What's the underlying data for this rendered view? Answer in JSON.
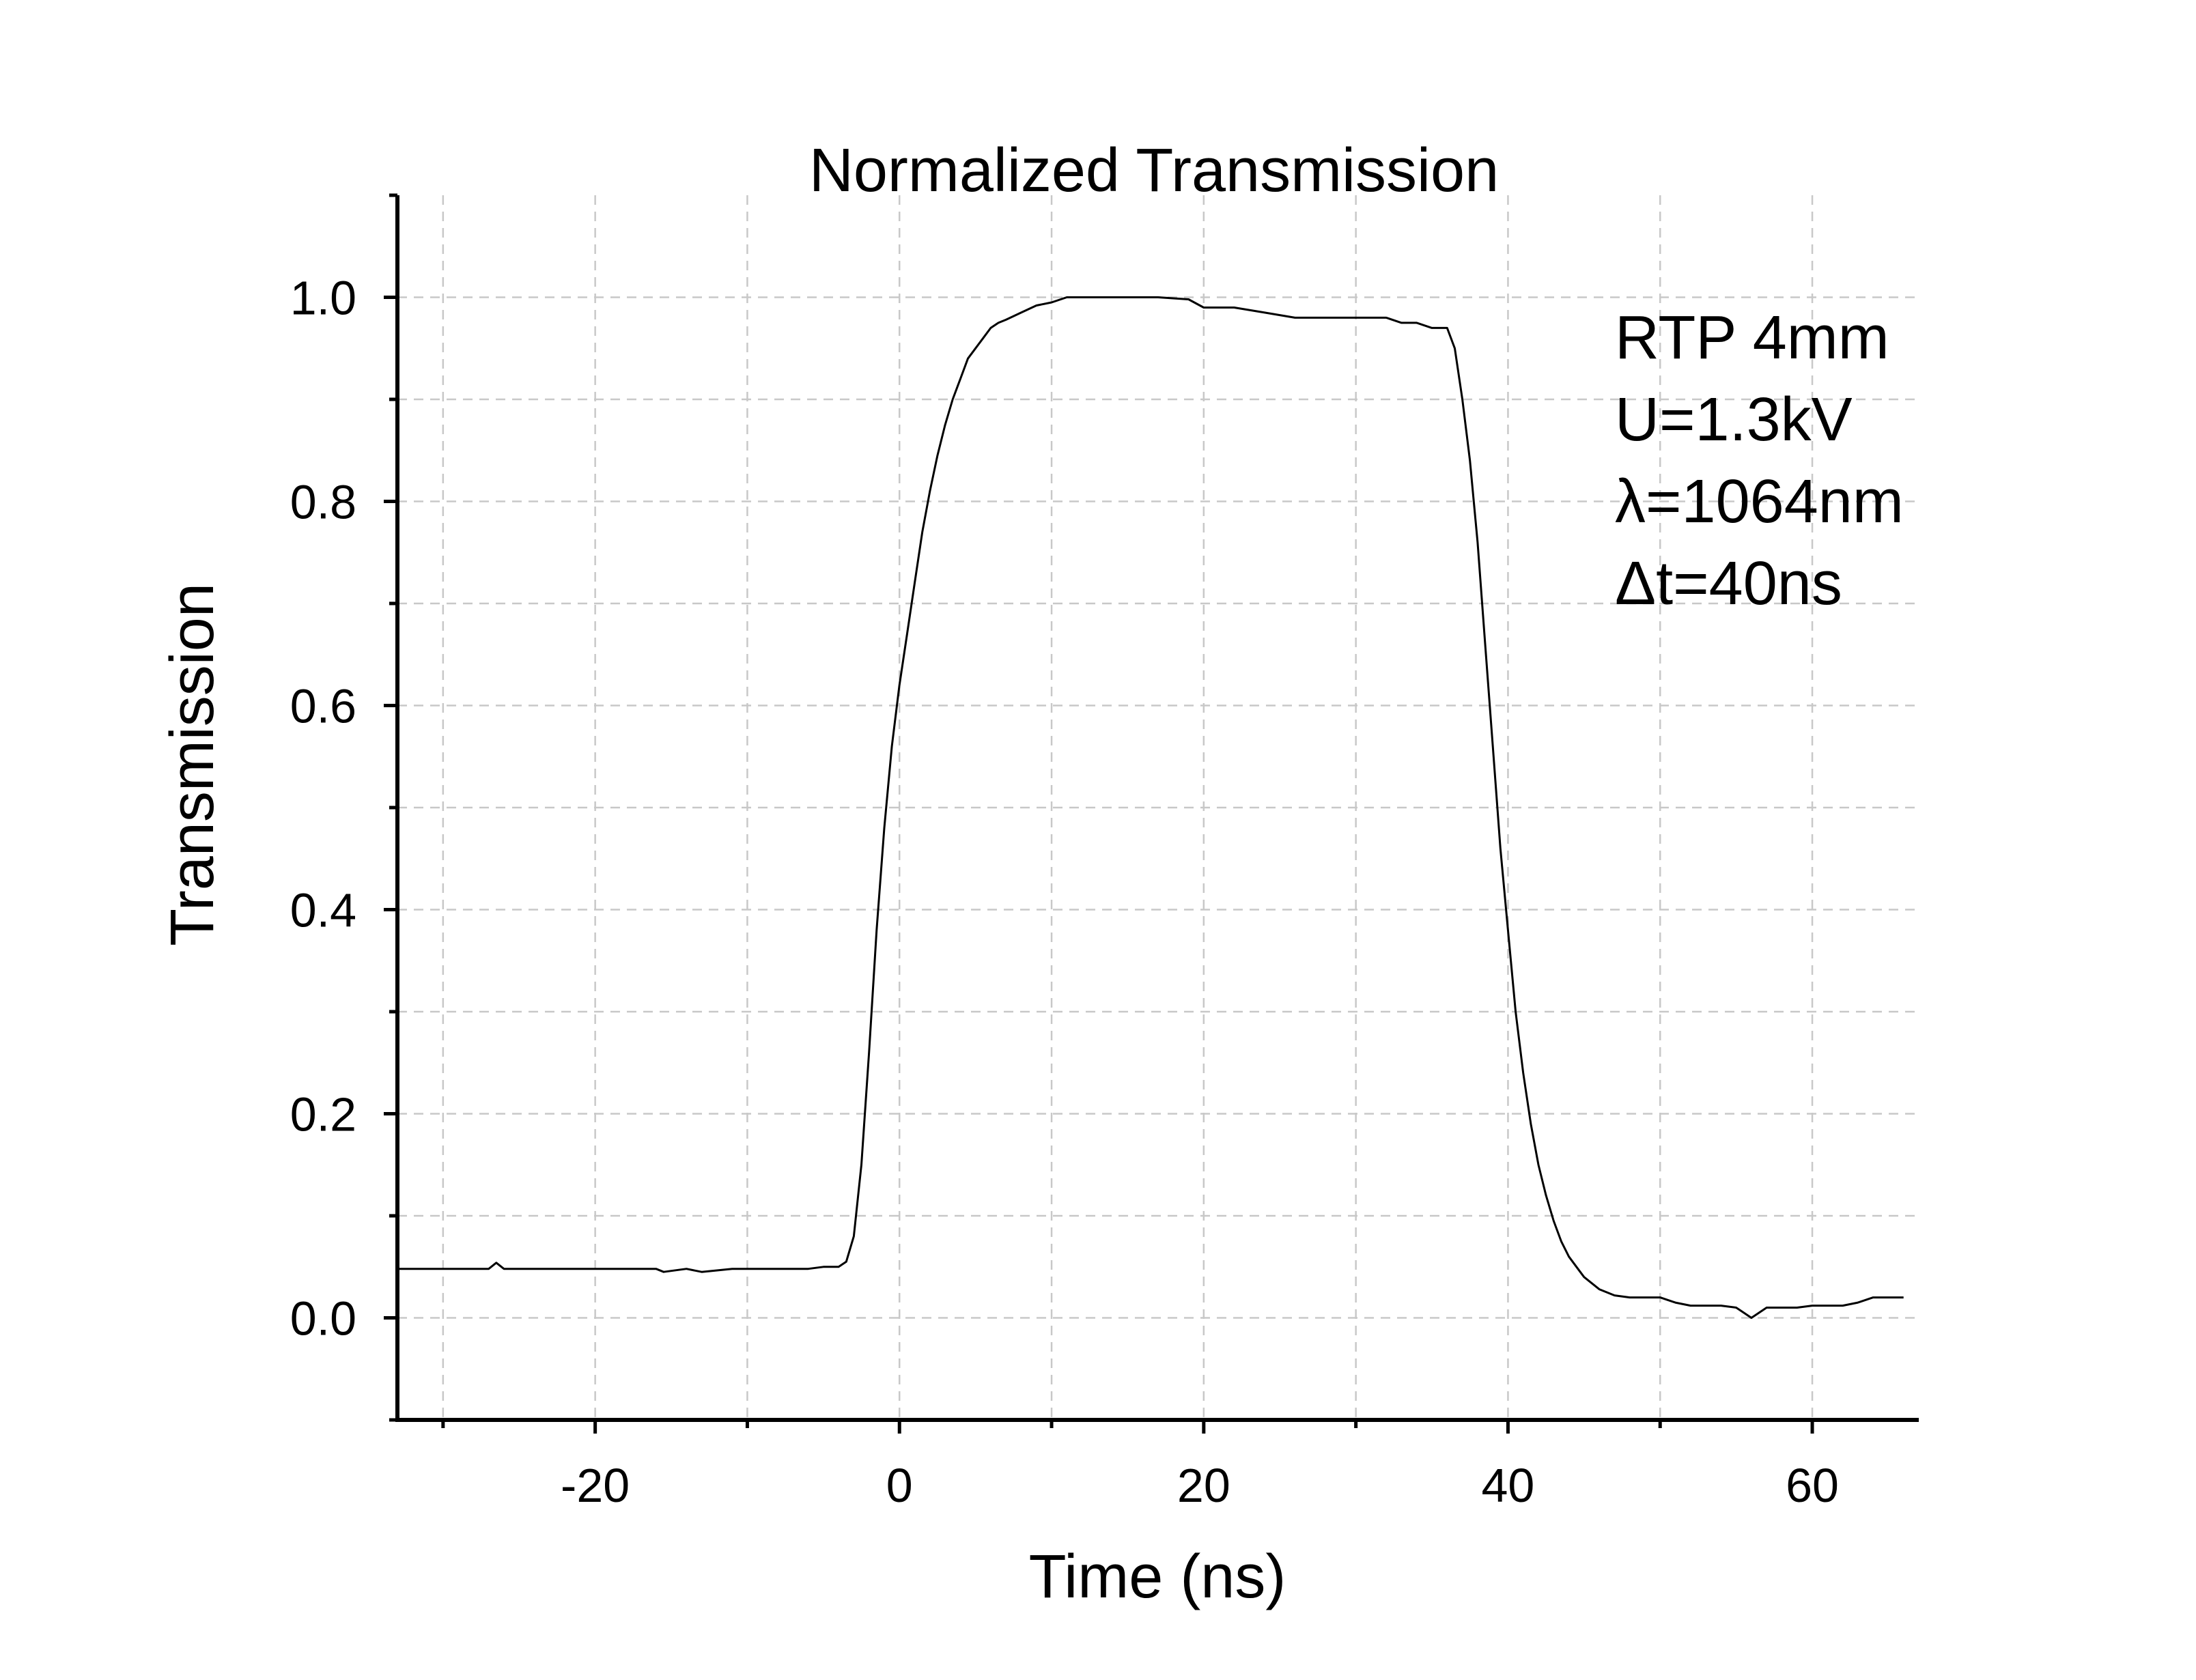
{
  "chart_data": {
    "type": "line",
    "title": "Normalized Transmission",
    "xlabel": "Time (ns)",
    "ylabel": "Transmission",
    "xlim": [
      -33,
      67
    ],
    "ylim": [
      -0.1,
      1.1
    ],
    "x_major_ticks": [
      -20,
      0,
      20,
      40,
      60
    ],
    "x_minor_ticks": [
      -30,
      -10,
      10,
      30,
      50
    ],
    "y_major_ticks": [
      0.0,
      0.2,
      0.4,
      0.6,
      0.8,
      1.0
    ],
    "y_minor_ticks": [
      -0.1,
      0.1,
      0.3,
      0.5,
      0.7,
      0.9,
      1.1
    ],
    "x_tick_labels": [
      "-20",
      "0",
      "20",
      "40",
      "60"
    ],
    "y_tick_labels": [
      "0.0",
      "0.2",
      "0.4",
      "0.6",
      "0.8",
      "1.0"
    ],
    "grid": true,
    "annotations": [
      "RTP 4mm",
      "U=1.3kV",
      "λ=1064nm",
      "Δt=40ns"
    ],
    "series": [
      {
        "color": "#000000",
        "x": [
          -33,
          -27,
          -26.5,
          -26,
          -20,
          -16,
          -15.5,
          -14,
          -13,
          -11,
          -10,
          -6,
          -5,
          -4.5,
          -4,
          -3.5,
          -3,
          -2.5,
          -2,
          -1.5,
          -1,
          -0.5,
          0,
          0.5,
          1,
          1.5,
          2,
          2.5,
          3,
          3.5,
          4,
          4.5,
          5,
          5.5,
          6,
          6.5,
          7,
          8,
          9,
          10,
          11,
          13,
          15,
          17,
          19,
          20,
          22,
          24,
          26,
          28,
          30,
          32,
          33,
          34,
          35,
          36,
          36.5,
          37,
          37.5,
          38,
          38.5,
          39,
          39.5,
          40,
          40.5,
          41,
          41.5,
          42,
          42.5,
          43,
          43.5,
          44,
          44.5,
          45,
          46,
          47,
          48,
          50,
          51,
          52,
          54,
          55,
          55.5,
          56,
          57,
          58,
          59,
          60,
          61,
          62,
          63,
          64,
          66
        ],
        "y": [
          0.048,
          0.048,
          0.054,
          0.048,
          0.048,
          0.048,
          0.045,
          0.048,
          0.045,
          0.048,
          0.048,
          0.048,
          0.05,
          0.05,
          0.05,
          0.055,
          0.08,
          0.15,
          0.26,
          0.38,
          0.48,
          0.56,
          0.62,
          0.67,
          0.72,
          0.77,
          0.81,
          0.845,
          0.875,
          0.9,
          0.92,
          0.94,
          0.95,
          0.96,
          0.97,
          0.975,
          0.978,
          0.985,
          0.992,
          0.995,
          1.0,
          1.0,
          1.0,
          1.0,
          0.998,
          0.99,
          0.99,
          0.985,
          0.98,
          0.98,
          0.98,
          0.98,
          0.975,
          0.975,
          0.97,
          0.97,
          0.95,
          0.9,
          0.84,
          0.76,
          0.66,
          0.56,
          0.46,
          0.38,
          0.3,
          0.24,
          0.19,
          0.15,
          0.12,
          0.095,
          0.075,
          0.06,
          0.05,
          0.04,
          0.028,
          0.022,
          0.02,
          0.02,
          0.015,
          0.012,
          0.012,
          0.01,
          0.005,
          0.0,
          0.01,
          0.01,
          0.01,
          0.012,
          0.012,
          0.012,
          0.015,
          0.02,
          0.02
        ]
      }
    ]
  }
}
